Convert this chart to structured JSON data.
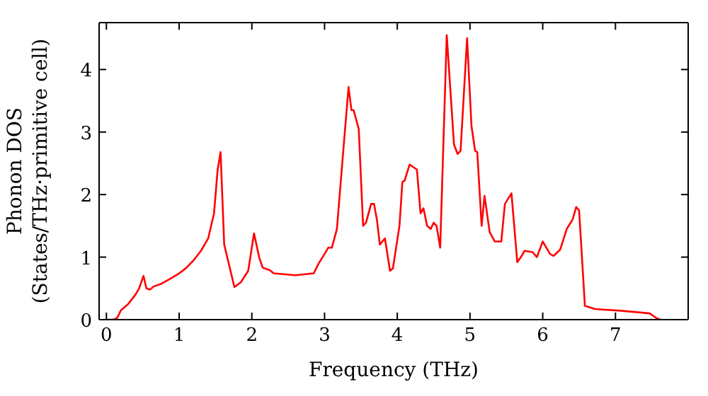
{
  "chart_data": {
    "type": "line",
    "xlabel": "Frequency (THz)",
    "ylabel": "Phonon DOS\n(States/THz·primitive cell)",
    "x": [
      0,
      0.1,
      0.15,
      0.2,
      0.3,
      0.4,
      0.45,
      0.51,
      0.55,
      0.6,
      0.65,
      0.75,
      0.9,
      1.0,
      1.1,
      1.2,
      1.3,
      1.4,
      1.48,
      1.53,
      1.57,
      1.62,
      1.76,
      1.85,
      1.95,
      2.03,
      2.1,
      2.15,
      2.25,
      2.3,
      2.6,
      2.85,
      2.92,
      3.0,
      3.05,
      3.1,
      3.17,
      3.25,
      3.33,
      3.37,
      3.4,
      3.47,
      3.53,
      3.57,
      3.64,
      3.68,
      3.72,
      3.76,
      3.83,
      3.9,
      3.94,
      4.03,
      4.07,
      4.1,
      4.17,
      4.27,
      4.32,
      4.36,
      4.41,
      4.46,
      4.5,
      4.54,
      4.59,
      4.68,
      4.78,
      4.83,
      4.87,
      4.96,
      5.02,
      5.07,
      5.1,
      5.16,
      5.2,
      5.27,
      5.34,
      5.43,
      5.48,
      5.57,
      5.65,
      5.7,
      5.75,
      5.86,
      5.92,
      6.0,
      6.1,
      6.15,
      6.24,
      6.33,
      6.41,
      6.46,
      6.5,
      6.58,
      6.72,
      7.1,
      7.47,
      7.57,
      7.62
    ],
    "series": [
      {
        "color": "#ff0000",
        "values": [
          0,
          0,
          0.03,
          0.15,
          0.25,
          0.4,
          0.5,
          0.7,
          0.5,
          0.48,
          0.53,
          0.57,
          0.67,
          0.74,
          0.83,
          0.95,
          1.1,
          1.3,
          1.7,
          2.4,
          2.68,
          1.2,
          0.52,
          0.6,
          0.78,
          1.38,
          1.0,
          0.83,
          0.79,
          0.74,
          0.71,
          0.74,
          0.9,
          1.05,
          1.15,
          1.15,
          1.45,
          2.6,
          3.72,
          3.35,
          3.35,
          3.05,
          1.5,
          1.55,
          1.85,
          1.85,
          1.6,
          1.2,
          1.3,
          0.78,
          0.82,
          1.5,
          2.2,
          2.22,
          2.48,
          2.4,
          1.7,
          1.78,
          1.5,
          1.45,
          1.55,
          1.5,
          1.15,
          4.55,
          2.8,
          2.65,
          2.7,
          4.5,
          3.1,
          2.7,
          2.68,
          1.5,
          1.98,
          1.4,
          1.25,
          1.25,
          1.85,
          2.02,
          0.92,
          1.0,
          1.1,
          1.08,
          1.0,
          1.25,
          1.05,
          1.02,
          1.12,
          1.45,
          1.6,
          1.8,
          1.75,
          0.22,
          0.17,
          0.14,
          0.1,
          0.02,
          0
        ]
      }
    ],
    "xlim": [
      -0.1,
      8.0
    ],
    "ylim": [
      0,
      4.75
    ],
    "xticks": [
      0,
      1,
      2,
      3,
      4,
      5,
      6,
      7
    ],
    "yticks": [
      0,
      1,
      2,
      3,
      4
    ],
    "grid": false,
    "legend": false,
    "marker": "none",
    "line_style": "solid"
  }
}
